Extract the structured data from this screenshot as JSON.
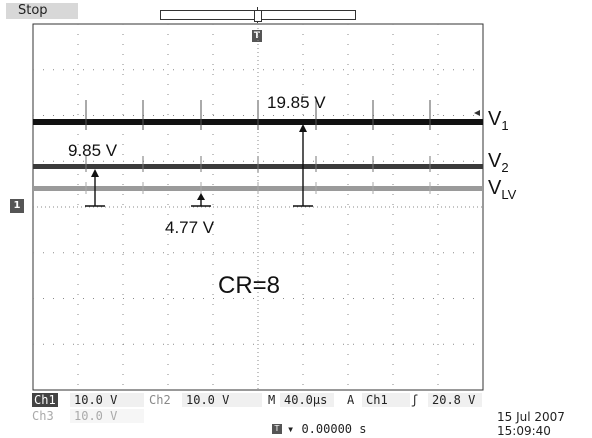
{
  "header": {
    "acquisition_state": "Stop"
  },
  "waveform": {
    "annotations": {
      "v1_amplitude": "19.85 V",
      "v2_amplitude": "9.85 V",
      "vlv_amplitude": "4.77 V"
    },
    "trace_labels": {
      "v1": {
        "base": "V",
        "sub": "1"
      },
      "v2": {
        "base": "V",
        "sub": "2"
      },
      "vlv": {
        "base": "V",
        "sub": "LV"
      }
    },
    "ratio_text": "CR=8",
    "trigger_marker": "T",
    "ch1_marker": "1"
  },
  "status_bar": {
    "ch1": {
      "tag": "Ch1",
      "scale": "10.0 V"
    },
    "ch2": {
      "tag": "Ch2",
      "scale": "10.0 V"
    },
    "ch3": {
      "tag": "Ch3",
      "scale": "10.0 V"
    },
    "timebase": {
      "tag": "M",
      "value": "40.0µs"
    },
    "trigger": {
      "tag": "A",
      "source": "Ch1",
      "slope_symbol": "ʃ",
      "level": "20.8 V"
    },
    "horizontal_position": "0.00000 s",
    "date": "15 Jul  2007",
    "time": "15:09:40"
  },
  "colors": {
    "v1_trace": "#111111",
    "v2_trace": "#3a3a3a",
    "vlv_trace": "#9a9a9a",
    "grid_dots": "#8a8a8a",
    "background": "#ffffff"
  }
}
